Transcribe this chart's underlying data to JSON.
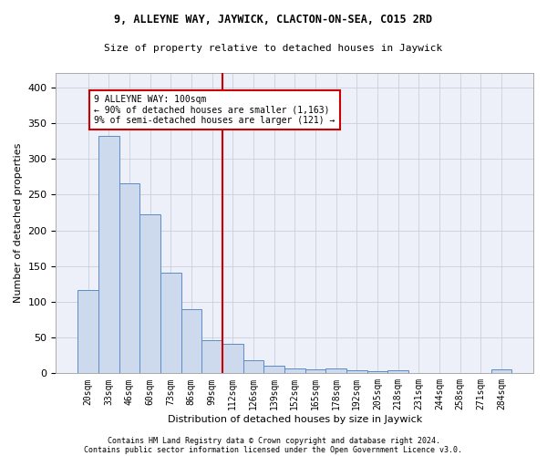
{
  "title1": "9, ALLEYNE WAY, JAYWICK, CLACTON-ON-SEA, CO15 2RD",
  "title2": "Size of property relative to detached houses in Jaywick",
  "xlabel": "Distribution of detached houses by size in Jaywick",
  "ylabel": "Number of detached properties",
  "footer1": "Contains HM Land Registry data © Crown copyright and database right 2024.",
  "footer2": "Contains public sector information licensed under the Open Government Licence v3.0.",
  "categories": [
    "20sqm",
    "33sqm",
    "46sqm",
    "60sqm",
    "73sqm",
    "86sqm",
    "99sqm",
    "112sqm",
    "126sqm",
    "139sqm",
    "152sqm",
    "165sqm",
    "178sqm",
    "192sqm",
    "205sqm",
    "218sqm",
    "231sqm",
    "244sqm",
    "258sqm",
    "271sqm",
    "284sqm"
  ],
  "values": [
    116,
    332,
    266,
    222,
    141,
    90,
    46,
    41,
    18,
    10,
    7,
    6,
    7,
    4,
    3,
    4,
    0,
    0,
    0,
    0,
    5
  ],
  "bar_color": "#cdd9ec",
  "bar_edge_color": "#5b8bc9",
  "property_line_x": 6.5,
  "annotation_text": "9 ALLEYNE WAY: 100sqm\n← 90% of detached houses are smaller (1,163)\n9% of semi-detached houses are larger (121) →",
  "annotation_box_color": "#ffffff",
  "annotation_box_edge": "#cc0000",
  "red_line_color": "#cc0000",
  "grid_color": "#c8d0dc",
  "bg_color": "#edf0f8",
  "ylim": [
    0,
    420
  ],
  "yticks": [
    0,
    50,
    100,
    150,
    200,
    250,
    300,
    350,
    400
  ]
}
